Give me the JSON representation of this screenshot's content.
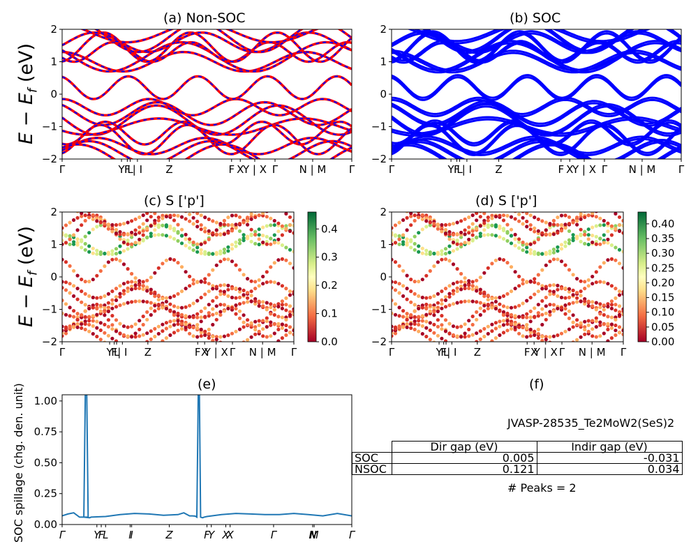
{
  "figure": {
    "panel_titles": {
      "a": "(a) Non-SOC",
      "b": "(b) SOC",
      "c": "(c)  S ['p']",
      "d": "(d) S ['p']",
      "e": "(e)",
      "f": "(f)"
    },
    "band_ylabel": "E − E",
    "band_ylabel_sub": "f",
    "band_ylabel_unit": " (eV)",
    "spillage_ylabel": "SOC spillage (chg. den. unit)",
    "material_id": "JVASP-28535_Te2MoW2(SeS)2",
    "peaks_text": "# Peaks = 2",
    "table": {
      "headers": [
        "Dir gap (eV)",
        "Indir gap (eV)"
      ],
      "rows": [
        {
          "label": "SOC",
          "dir": "0.005",
          "indir": "-0.031"
        },
        {
          "label": "NSOC",
          "dir": "0.121",
          "indir": "0.034"
        }
      ]
    }
  },
  "chart_data": [
    {
      "panel": "a",
      "type": "line",
      "title": "(a) Non-SOC",
      "ylabel": "E − E_f (eV)",
      "ylim": [
        -2,
        2
      ],
      "yticks": [
        -2,
        -1,
        0,
        1,
        2
      ],
      "xlim": [
        0,
        1
      ],
      "kpath_ticks": [
        {
          "x": 0.0,
          "label": "Γ"
        },
        {
          "x": 0.205,
          "label": "Y"
        },
        {
          "x": 0.225,
          "label": "F"
        },
        {
          "x": 0.235,
          "label": "L"
        },
        {
          "x": 0.26,
          "label": "| I"
        },
        {
          "x": 0.37,
          "label": "Z"
        },
        {
          "x": 0.585,
          "label": "F"
        },
        {
          "x": 0.615,
          "label": "X"
        },
        {
          "x": 0.665,
          "label": "Y | X"
        },
        {
          "x": 0.735,
          "label": "Γ"
        },
        {
          "x": 0.865,
          "label": "N | M"
        },
        {
          "x": 1.0,
          "label": "Γ"
        }
      ],
      "series": [
        {
          "name": "Non-SOC",
          "color": "#ff0000"
        },
        {
          "name": "SOC",
          "color": "#0000ff"
        }
      ],
      "line_style": "red solid overlaid with blue dashed",
      "valence_band_max_ev": 0.0,
      "conduction_band_min_ev": 0.15
    },
    {
      "panel": "b",
      "type": "line",
      "title": "(b) SOC",
      "ylim": [
        -2,
        2
      ],
      "yticks": [
        -2,
        -1,
        0,
        1,
        2
      ],
      "xlim": [
        0,
        1
      ],
      "series": [
        {
          "name": "SOC",
          "color": "#0000ff"
        }
      ]
    },
    {
      "panel": "c",
      "type": "scatter",
      "title": "(c)  S ['p']",
      "ylabel": "E − E_f (eV)",
      "ylim": [
        -2,
        2
      ],
      "yticks": [
        -2,
        -1,
        0,
        1,
        2
      ],
      "colormap": "RdYlGn",
      "colorbar_range": [
        0.0,
        0.46
      ],
      "colorbar_ticks": [
        "0.0",
        "0.1",
        "0.2",
        "0.3",
        "0.4"
      ]
    },
    {
      "panel": "d",
      "type": "scatter",
      "title": "(d) S ['p']",
      "ylim": [
        -2,
        2
      ],
      "yticks": [
        -2,
        -1,
        0,
        1,
        2
      ],
      "colormap": "RdYlGn",
      "colorbar_range": [
        0.0,
        0.44
      ],
      "colorbar_ticks": [
        "0.00",
        "0.05",
        "0.10",
        "0.15",
        "0.20",
        "0.25",
        "0.30",
        "0.35",
        "0.40"
      ]
    },
    {
      "panel": "e",
      "type": "line",
      "title": "(e)",
      "ylabel": "SOC spillage (chg. den. unit)",
      "ylim": [
        0,
        1.05
      ],
      "yticks": [
        "0.00",
        "0.25",
        "0.50",
        "0.75",
        "1.00"
      ],
      "x": [
        0.0,
        0.02,
        0.04,
        0.06,
        0.07,
        0.075,
        0.08,
        0.085,
        0.09,
        0.075,
        0.095,
        0.1,
        0.12,
        0.15,
        0.2,
        0.25,
        0.3,
        0.35,
        0.4,
        0.42,
        0.44,
        0.45,
        0.46,
        0.465,
        0.47,
        0.474,
        0.478,
        0.48,
        0.485,
        0.49,
        0.5,
        0.55,
        0.6,
        0.65,
        0.7,
        0.75,
        0.8,
        0.85,
        0.9,
        0.95,
        1.0
      ],
      "y": [
        0.07,
        0.085,
        0.095,
        0.06,
        0.06,
        0.06,
        1.05,
        1.05,
        0.06,
        0.06,
        0.055,
        0.06,
        0.062,
        0.065,
        0.08,
        0.09,
        0.085,
        0.075,
        0.08,
        0.095,
        0.07,
        0.07,
        0.068,
        0.06,
        1.05,
        1.05,
        0.06,
        0.058,
        0.055,
        0.06,
        0.065,
        0.08,
        0.09,
        0.085,
        0.08,
        0.08,
        0.09,
        0.08,
        0.07,
        0.09,
        0.07
      ],
      "kpath_ticks": [
        "Γ",
        "Y",
        "F",
        "L",
        "I",
        "I",
        "Z",
        "F",
        "Y",
        "X",
        "X",
        "Γ",
        "N",
        "M",
        "Γ"
      ],
      "color": "#1f77b4",
      "peaks": 2
    }
  ]
}
